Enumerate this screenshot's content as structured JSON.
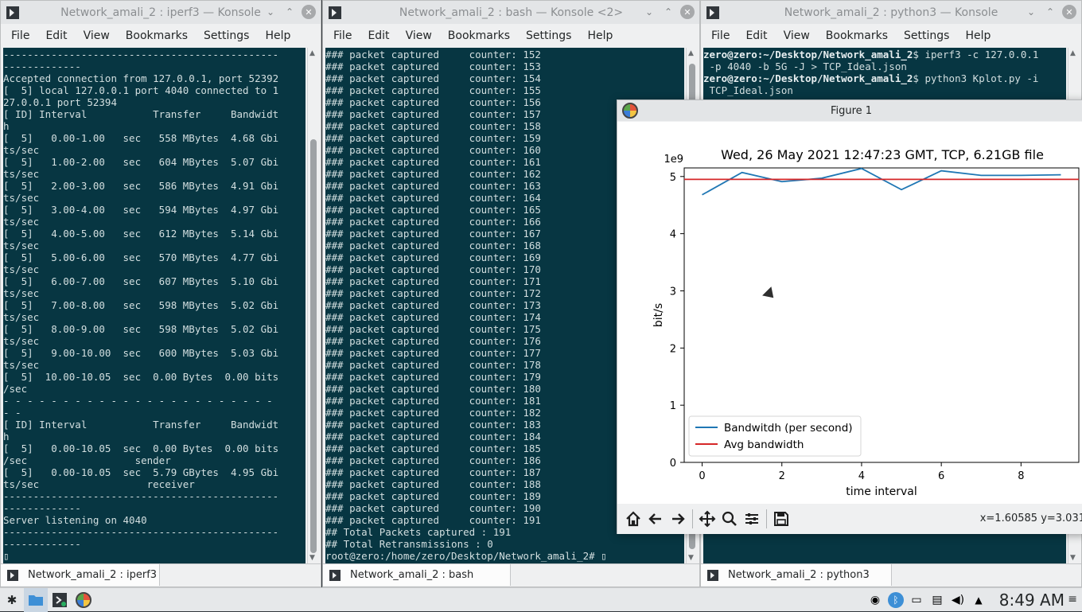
{
  "windows": {
    "left": {
      "title": "Network_amali_2 : iperf3 — Konsole",
      "menu": [
        "File",
        "Edit",
        "View",
        "Bookmarks",
        "Settings",
        "Help"
      ],
      "tab_label": "Network_amali_2 : iperf3",
      "lines": [
        "----------------------------------------------",
        "-------------",
        "Accepted connection from 127.0.0.1, port 52392",
        "[  5] local 127.0.0.1 port 4040 connected to 1",
        "27.0.0.1 port 52394",
        "[ ID] Interval           Transfer     Bandwidt",
        "h",
        "[  5]   0.00-1.00   sec   558 MBytes  4.68 Gbi",
        "ts/sec",
        "[  5]   1.00-2.00   sec   604 MBytes  5.07 Gbi",
        "ts/sec",
        "[  5]   2.00-3.00   sec   586 MBytes  4.91 Gbi",
        "ts/sec",
        "[  5]   3.00-4.00   sec   594 MBytes  4.97 Gbi",
        "ts/sec",
        "[  5]   4.00-5.00   sec   612 MBytes  5.14 Gbi",
        "ts/sec",
        "[  5]   5.00-6.00   sec   570 MBytes  4.77 Gbi",
        "ts/sec",
        "[  5]   6.00-7.00   sec   607 MBytes  5.10 Gbi",
        "ts/sec",
        "[  5]   7.00-8.00   sec   598 MBytes  5.02 Gbi",
        "ts/sec",
        "[  5]   8.00-9.00   sec   598 MBytes  5.02 Gbi",
        "ts/sec",
        "[  5]   9.00-10.00  sec   600 MBytes  5.03 Gbi",
        "ts/sec",
        "[  5]  10.00-10.05  sec  0.00 Bytes  0.00 bits",
        "/sec",
        "- - - - - - - - - - - - - - - - - - - - - - -",
        "- -",
        "[ ID] Interval           Transfer     Bandwidt",
        "h",
        "[  5]   0.00-10.05  sec  0.00 Bytes  0.00 bits",
        "/sec                  sender",
        "[  5]   0.00-10.05  sec  5.79 GBytes  4.95 Gbi",
        "ts/sec                  receiver",
        "----------------------------------------------",
        "-------------",
        "Server listening on 4040",
        "----------------------------------------------",
        "-------------",
        "▯"
      ]
    },
    "middle": {
      "title": "Network_amali_2 : bash — Konsole <2>",
      "menu": [
        "File",
        "Edit",
        "View",
        "Bookmarks",
        "Settings",
        "Help"
      ],
      "tab_label": "Network_amali_2 : bash",
      "capture_prefix": "### packet captured     counter: ",
      "counters": [
        "152",
        "153",
        "154",
        "155",
        "156",
        "157",
        "158",
        "159",
        "160",
        "161",
        "162",
        "163",
        "164",
        "165",
        "166",
        "167",
        "168",
        "169",
        "170",
        "171",
        "172",
        "173",
        "174",
        "175",
        "176",
        "177",
        "178",
        "179",
        "180",
        "181",
        "182",
        "183",
        "184",
        "185",
        "186",
        "187",
        "188",
        "189",
        "190",
        "191"
      ],
      "summary1": "## Total Packets captured : 191",
      "summary2": "## Total Retransmissions : 0",
      "prompt": "root@zero:/home/zero/Desktop/Network_amali_2# ▯"
    },
    "right": {
      "title": "Network_amali_2 : python3 — Konsole",
      "menu": [
        "File",
        "Edit",
        "View",
        "Bookmarks",
        "Settings",
        "Help"
      ],
      "tab_label": "Network_amali_2 : python3",
      "p1_user": "zero@zero",
      "p1_path": ":~/Desktop/Network_amali_2",
      "p1_cmd": "$ iperf3 -c 127.0.0.1",
      "p1_cont": " -p 4040 -b 5G -J > TCP_Ideal.json",
      "p2_user": "zero@zero",
      "p2_path": ":~/Desktop/Network_amali_2",
      "p2_cmd": "$ python3 Kplot.py -i",
      "p2_cont": " TCP_Ideal.json"
    }
  },
  "figure": {
    "title": "Figure 1",
    "coords": "x=1.60585     y=3.031",
    "toolbar": [
      "home-icon",
      "back-icon",
      "forward-icon",
      "pan-icon",
      "zoom-icon",
      "configure-icon",
      "save-icon"
    ]
  },
  "chart_data": {
    "type": "line",
    "title": "Wed, 26 May 2021 12:47:23 GMT, TCP, 6.21GB file",
    "xlabel": "time interval",
    "ylabel": "bit/s",
    "y_offset_label": "1e9",
    "xlim": [
      -0.45,
      9.45
    ],
    "ylim": [
      0,
      5.15
    ],
    "xticks": [
      0,
      2,
      4,
      6,
      8
    ],
    "yticks": [
      0,
      1,
      2,
      3,
      4,
      5
    ],
    "legend_position": "lower-left",
    "series": [
      {
        "name": "Bandwitdh (per second)",
        "color": "#1f77b4",
        "x": [
          0,
          1,
          2,
          3,
          4,
          5,
          6,
          7,
          8,
          9
        ],
        "values": [
          4.68,
          5.07,
          4.91,
          4.97,
          5.14,
          4.77,
          5.1,
          5.02,
          5.02,
          5.03
        ]
      },
      {
        "name": "Avg bandwidth",
        "color": "#d62728",
        "x": [
          -0.45,
          9.45
        ],
        "values": [
          4.95,
          4.95
        ]
      }
    ]
  },
  "taskbar": {
    "clock": "8:49 AM"
  }
}
